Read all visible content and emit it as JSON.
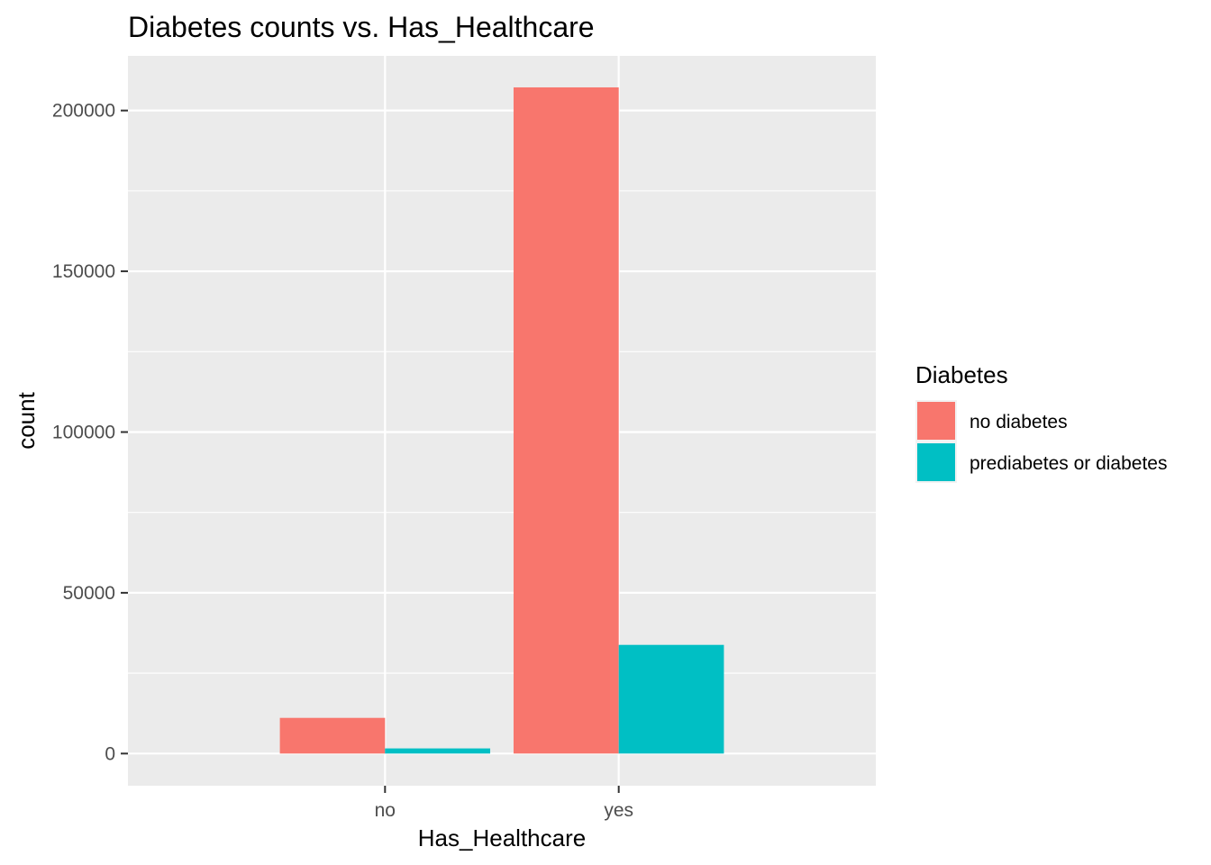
{
  "chart_data": {
    "type": "bar",
    "title": "Diabetes counts vs. Has_Healthcare",
    "xlabel": "Has_Healthcare",
    "ylabel": "count",
    "categories": [
      "no",
      "yes"
    ],
    "series": [
      {
        "name": "no diabetes",
        "color": "#F8766D",
        "values": [
          11100,
          207200
        ]
      },
      {
        "name": "prediabetes or diabetes",
        "color": "#00BFC4",
        "values": [
          1600,
          33800
        ]
      }
    ],
    "ylim": [
      -10000,
      217000
    ],
    "yticks": [
      0,
      50000,
      100000,
      150000,
      200000
    ],
    "ytick_labels": [
      "0",
      "50000",
      "100000",
      "150000",
      "200000"
    ],
    "grid": true,
    "legend": {
      "title": "Diabetes",
      "position": "right"
    },
    "colors": {
      "panel_background": "#EBEBEB",
      "grid": "#FFFFFF"
    }
  }
}
